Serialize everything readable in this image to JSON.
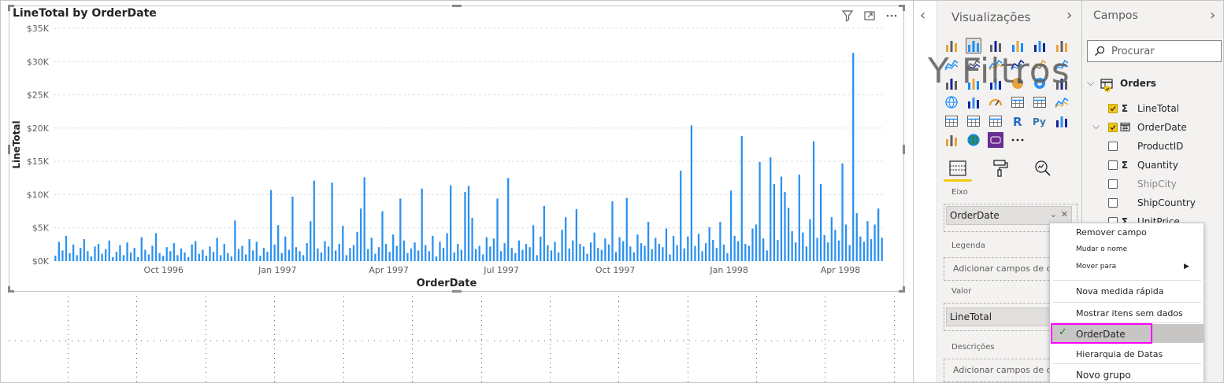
{
  "visual": {
    "title": "LineTotal by OrderDate",
    "header_icons": [
      "filter-icon",
      "focus-mode-icon",
      "more-options-icon"
    ]
  },
  "chart_data": {
    "type": "bar",
    "xlabel": "OrderDate",
    "ylabel": "LineTotal",
    "ylim": [
      0,
      35000
    ],
    "y_ticks": [
      "$0K",
      "$5K",
      "$10K",
      "$15K",
      "$20K",
      "$25K",
      "$30K",
      "$35K"
    ],
    "x_ticks": [
      "Oct 1996",
      "Jan 1997",
      "Apr 1997",
      "Jul 1997",
      "Oct 1997",
      "Jan 1998",
      "Apr 1998"
    ],
    "x_range": [
      "1996-07-04",
      "1998-05-06"
    ],
    "grid": true,
    "series": [
      {
        "color": "#2b91f0",
        "values": [
          800,
          2900,
          1600,
          3800,
          1200,
          2500,
          900,
          2000,
          3300,
          1500,
          700,
          2200,
          2600,
          1100,
          1800,
          3100,
          600,
          1400,
          2400,
          900,
          2800,
          1300,
          2000,
          600,
          3600,
          1700,
          1000,
          2300,
          4200,
          1200,
          800,
          2100,
          1500,
          2700,
          900,
          1900,
          1300,
          600,
          2500,
          3000,
          1100,
          1700,
          800,
          2200,
          1400,
          3500,
          900,
          2600,
          1200,
          700,
          6100,
          1800,
          2300,
          1000,
          3300,
          1600,
          2900,
          800,
          2000,
          1400,
          10700,
          2500,
          5400,
          1200,
          3700,
          1700,
          9700,
          2100,
          1500,
          900,
          2700,
          6000,
          12100,
          1900,
          1300,
          3000,
          2200,
          11800,
          1600,
          2600,
          5300,
          900,
          2000,
          2400,
          4400,
          7900,
          12600,
          1800,
          3500,
          1100,
          2100,
          7500,
          2600,
          1400,
          4000,
          2300,
          9400,
          3100,
          1200,
          1900,
          2800,
          1600,
          10900,
          2400,
          1500,
          3800,
          700,
          2900,
          2000,
          4200,
          11400,
          1300,
          2600,
          1700,
          10400,
          11300,
          6500,
          1800,
          2300,
          1000,
          3600,
          2200,
          3400,
          9400,
          1500,
          2700,
          12500,
          2000,
          1200,
          3100,
          1700,
          2600,
          2100,
          5400,
          900,
          3700,
          8300,
          2400,
          1600,
          2900,
          1300,
          4700,
          6600,
          1900,
          3100,
          7800,
          2600,
          2200,
          1100,
          2800,
          4300,
          2000,
          1700,
          3400,
          2500,
          9000,
          1400,
          3600,
          3000,
          9500,
          2200,
          1300,
          4000,
          2700,
          2300,
          5900,
          1800,
          3500,
          2600,
          2100,
          4900,
          1000,
          3800,
          2400,
          13600,
          1900,
          3700,
          20400,
          2300,
          4100,
          1500,
          2700,
          5100,
          3200,
          2000,
          5900,
          2500,
          1200,
          10600,
          3800,
          3000,
          18800,
          2600,
          2300,
          4900,
          5500,
          14900,
          3400,
          1600,
          15600,
          11600,
          3200,
          12700,
          10400,
          8000,
          4500,
          2800,
          13000,
          4300,
          2200,
          6300,
          18000,
          3500,
          11600,
          3900,
          2800,
          6600,
          4700,
          3100,
          14700,
          5500,
          2400,
          31300,
          7200,
          3700,
          2900,
          6000,
          3300,
          5500,
          7900,
          3500
        ]
      }
    ]
  },
  "viz_pane": {
    "title": "Visualizações",
    "overlay_text": "Y Filtros",
    "wells": {
      "axis_label": "Eixo",
      "axis_field": "OrderDate",
      "legend_label": "Legenda",
      "legend_placeholder": "Adicionar campos de dados aqui",
      "value_label": "Valor",
      "value_field": "LineTotal",
      "tooltips_label": "Descrições",
      "tooltips_placeholder": "Adicionar campos de dados aqui"
    }
  },
  "fields_pane": {
    "title": "Campos",
    "search_placeholder": "Procurar",
    "table_name": "Orders",
    "fields": [
      {
        "name": "LineTotal",
        "checked": true,
        "sigma": true
      },
      {
        "name": "OrderDate",
        "checked": true,
        "calendar": true
      },
      {
        "name": "ProductID",
        "checked": false
      },
      {
        "name": "Quantity",
        "checked": false,
        "sigma": true
      },
      {
        "name": "ShipCity",
        "checked": false
      },
      {
        "name": "ShipCountry",
        "checked": false
      },
      {
        "name": "UnitPrice",
        "checked": false,
        "sigma": true
      }
    ]
  },
  "context_menu": {
    "items": [
      "Remover campo",
      "Mudar o nome",
      "Mover para",
      "Nova medida rápida",
      "Mostrar itens sem dados",
      "OrderDate",
      "Hierarquia de Datas",
      "Novo grupo"
    ],
    "selected": "OrderDate",
    "highlight_color": "#ff00ff"
  }
}
